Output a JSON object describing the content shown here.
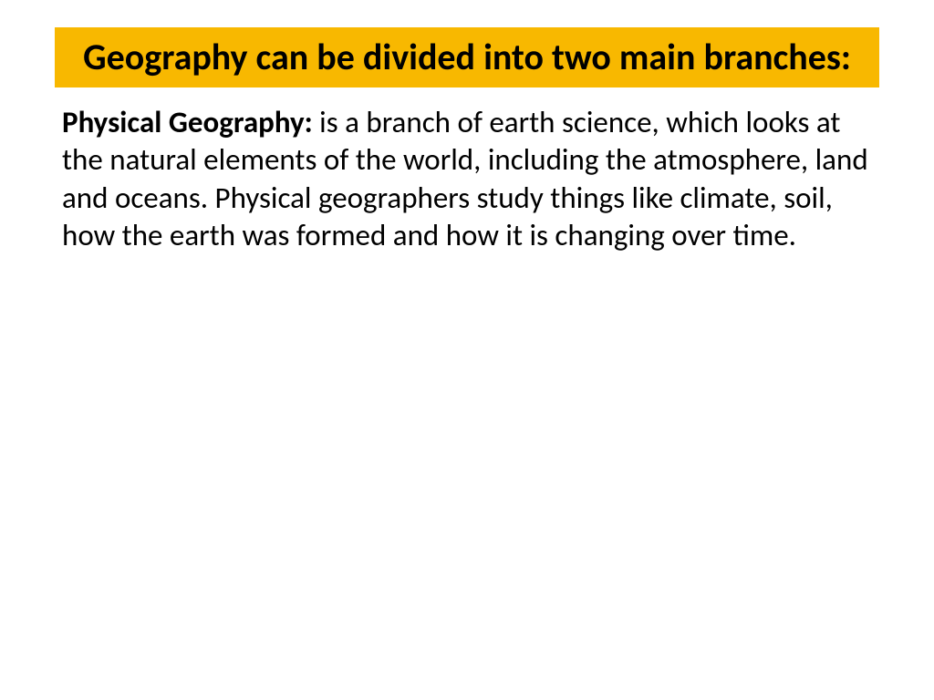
{
  "slide": {
    "title": "Geography can be divided into two main branches:",
    "title_bg_color": "#f8b800",
    "title_text_color": "#000000",
    "title_fontsize": 40,
    "title_fontweight": "bold",
    "body": {
      "label": "Physical Geography:",
      "text": " is a branch of earth science, which looks at the natural elements of the world, including the atmosphere, land and oceans. Physical geographers study things like climate, soil, how the earth was formed and how it is changing over time.",
      "fontsize": 33,
      "text_color": "#000000"
    },
    "background_color": "#ffffff"
  }
}
